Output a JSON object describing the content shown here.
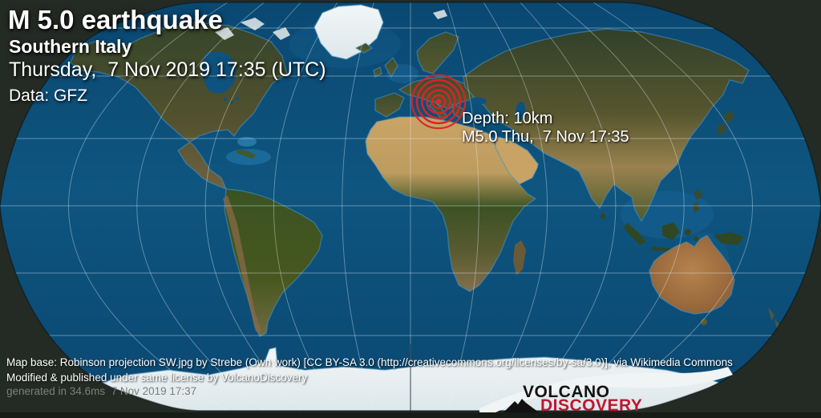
{
  "header": {
    "title": "M 5.0 earthquake",
    "region": "Southern Italy",
    "datetime": "Thursday,  7 Nov 2019 17:35 (UTC)",
    "data_source": "Data: GFZ"
  },
  "epicenter_label": {
    "depth": "Depth: 10km",
    "magnitude_time": "M5.0 Thu,  7 Nov 17:35"
  },
  "footer": {
    "map_attribution": "Map base: Robinson projection SW.jpg by Strebe (Own work) [CC BY-SA 3.0 (http://creativecommons.org/licenses/by-sa/3.0)], via Wikimedia Commons",
    "license_line": "Modified & published under same license by VolcanoDiscovery",
    "generated_line": "generated in 34.6ms  7 Nov 2019 17:37"
  },
  "logo": {
    "word1": "VOLCANO",
    "word2": "DISCOVERY",
    "icon": "volcano-icon"
  },
  "colors": {
    "marker_red": "#d8232a",
    "logo_red": "#bc1731",
    "ocean_blue": "#0d5280",
    "background_dark": "#242b24"
  }
}
